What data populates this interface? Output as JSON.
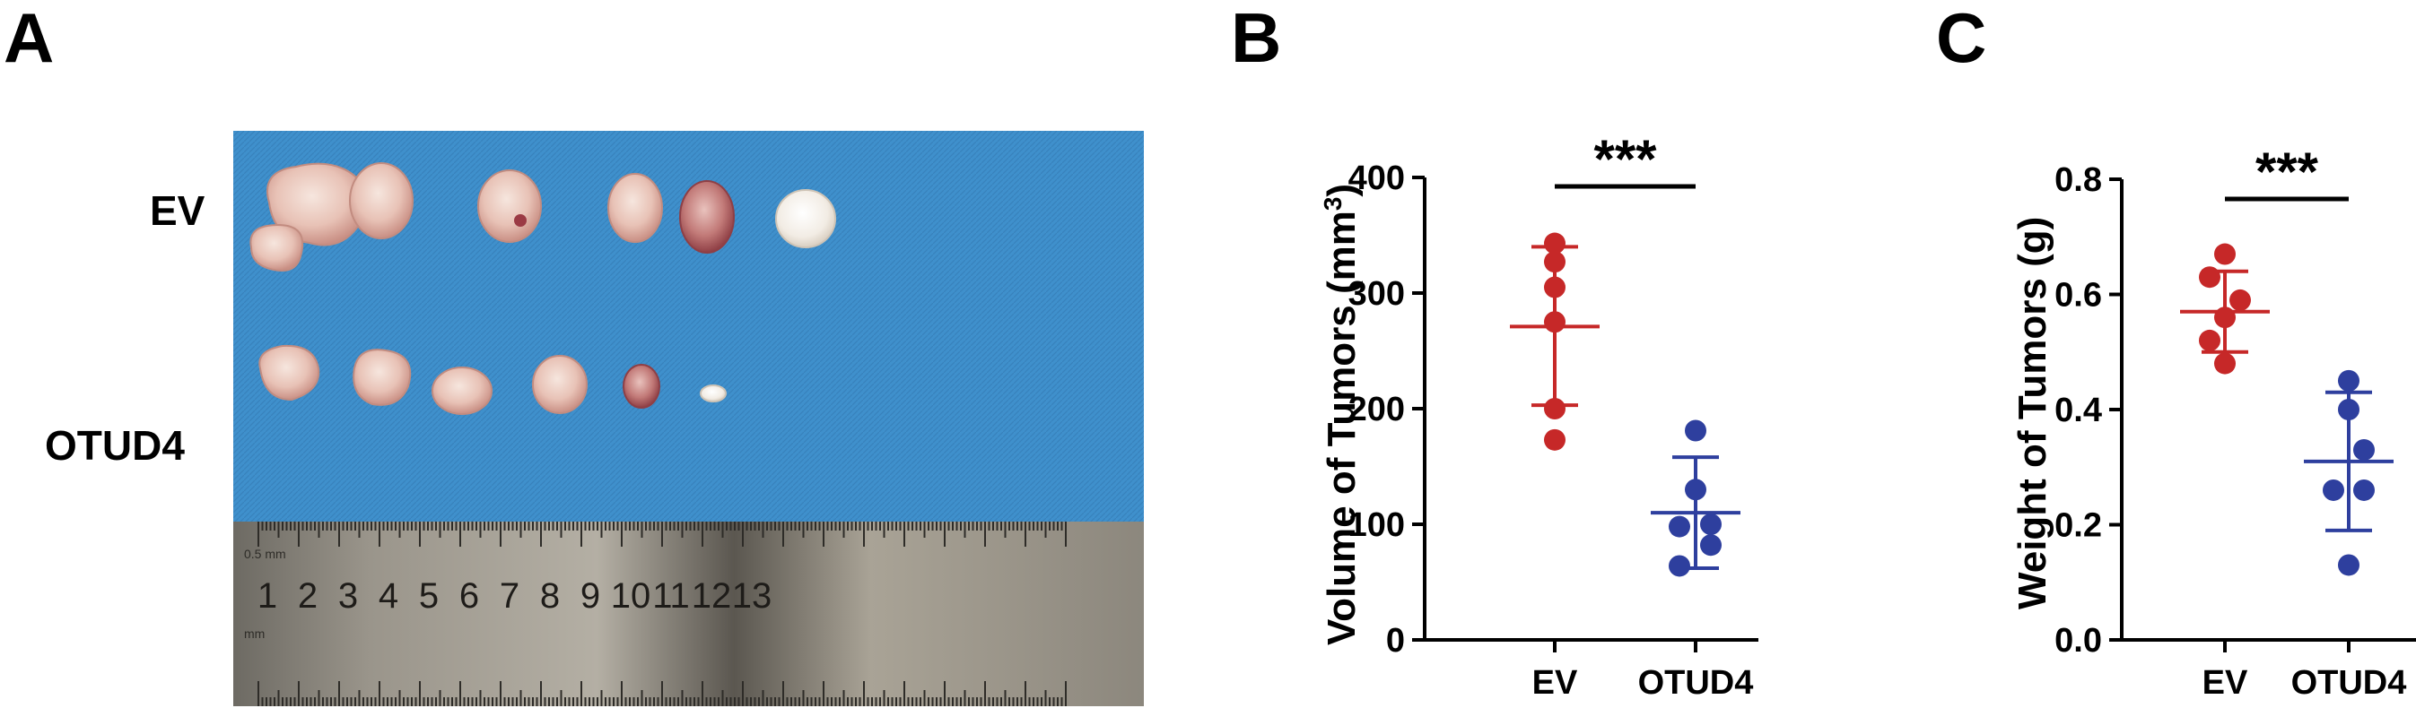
{
  "panels": {
    "a": {
      "letter": "A",
      "rows": [
        "EV",
        "OTUD4"
      ],
      "ruler_numbers": [
        "1",
        "2",
        "3",
        "4",
        "5",
        "6",
        "7",
        "8",
        "9",
        "10",
        "11",
        "12",
        "13"
      ],
      "ruler_unit": "0.5 mm",
      "ruler_unit2": "mm"
    },
    "b": {
      "letter": "B"
    },
    "c": {
      "letter": "C"
    }
  },
  "colors": {
    "ev": "#C62828",
    "otud4": "#2E3F9E",
    "background_board": "#3E8FCB"
  },
  "chart_data": [
    {
      "type": "scatter",
      "ylabel": "Volume of Tumors (mm3)",
      "ylabel_main": "Volume of Tumors (mm",
      "ylabel_sup": "3",
      "ylabel_close": ")",
      "categories": [
        "EV",
        "OTUD4"
      ],
      "ylim": [
        0,
        400
      ],
      "yticks": [
        0,
        100,
        200,
        300,
        400
      ],
      "significance": "***",
      "series": [
        {
          "name": "EV",
          "color": "#C62828",
          "values": [
            343,
            327,
            305,
            275,
            200,
            173
          ],
          "mean": 271,
          "sd_low": 203,
          "sd_high": 340
        },
        {
          "name": "OTUD4",
          "color": "#2E3F9E",
          "values": [
            181,
            130,
            100,
            98,
            82,
            64
          ],
          "mean": 110,
          "sd_low": 62,
          "sd_high": 158
        }
      ]
    },
    {
      "type": "scatter",
      "ylabel": "Weight of Tumors (g)",
      "categories": [
        "EV",
        "OTUD4"
      ],
      "ylim": [
        0,
        0.8
      ],
      "yticks": [
        "0.0",
        "0.2",
        "0.4",
        "0.6",
        "0.8"
      ],
      "significance": "***",
      "series": [
        {
          "name": "EV",
          "color": "#C62828",
          "values": [
            0.67,
            0.63,
            0.59,
            0.56,
            0.52,
            0.48
          ],
          "mean": 0.57,
          "sd_low": 0.5,
          "sd_high": 0.64
        },
        {
          "name": "OTUD4",
          "color": "#2E3F9E",
          "values": [
            0.45,
            0.4,
            0.33,
            0.26,
            0.26,
            0.13
          ],
          "mean": 0.31,
          "sd_low": 0.19,
          "sd_high": 0.43
        }
      ]
    }
  ]
}
